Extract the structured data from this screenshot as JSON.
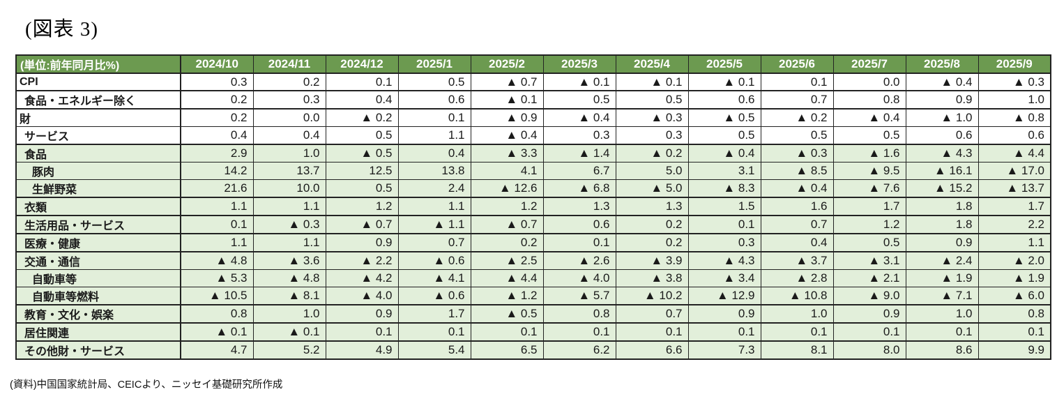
{
  "title": "(図表 3)",
  "footer": "(資料)中国国家統計局、CEICより、ニッセイ基礎研究所作成",
  "negative_marker": "▲",
  "colors": {
    "header_bg": "#6C9A50",
    "header_text": "#ffffff",
    "green_row_bg": "#E2EFDA",
    "white_row_bg": "#ffffff",
    "border": "#222222"
  },
  "chart_data": {
    "type": "table",
    "unit_label": "(単位:前年同月比%)",
    "columns": [
      "2024/10",
      "2024/11",
      "2024/12",
      "2025/1",
      "2025/2",
      "2025/3",
      "2025/4",
      "2025/5",
      "2025/6",
      "2025/7",
      "2025/8",
      "2025/9"
    ],
    "rows": [
      {
        "label": "CPI",
        "indent": 0,
        "shade": "white",
        "sep": "thick",
        "values": [
          0.3,
          0.2,
          0.1,
          0.5,
          -0.7,
          -0.1,
          -0.1,
          -0.1,
          0.1,
          0.0,
          -0.4,
          -0.3
        ]
      },
      {
        "label": "食品・エネルギー除く",
        "indent": 1,
        "shade": "white",
        "sep": "thick",
        "values": [
          0.2,
          0.3,
          0.4,
          0.6,
          -0.1,
          0.5,
          0.5,
          0.6,
          0.7,
          0.8,
          0.9,
          1.0
        ]
      },
      {
        "label": "財",
        "indent": 0,
        "shade": "white",
        "sep": "thin",
        "values": [
          0.2,
          0.0,
          -0.2,
          0.1,
          -0.9,
          -0.4,
          -0.3,
          -0.5,
          -0.2,
          -0.4,
          -1.0,
          -0.8
        ]
      },
      {
        "label": "サービス",
        "indent": 1,
        "shade": "white",
        "sep": "thick",
        "values": [
          0.4,
          0.4,
          0.5,
          1.1,
          -0.4,
          0.3,
          0.3,
          0.5,
          0.5,
          0.5,
          0.6,
          0.6
        ]
      },
      {
        "label": "食品",
        "indent": 1,
        "shade": "green",
        "sep": "thin",
        "values": [
          2.9,
          1.0,
          -0.5,
          0.4,
          -3.3,
          -1.4,
          -0.2,
          -0.4,
          -0.3,
          -1.6,
          -4.3,
          -4.4
        ]
      },
      {
        "label": "豚肉",
        "indent": 2,
        "shade": "green",
        "sep": "thin",
        "values": [
          14.2,
          13.7,
          12.5,
          13.8,
          4.1,
          6.7,
          5.0,
          3.1,
          -8.5,
          -9.5,
          -16.1,
          -17.0
        ]
      },
      {
        "label": "生鮮野菜",
        "indent": 2,
        "shade": "green",
        "sep": "thick",
        "values": [
          21.6,
          10.0,
          0.5,
          2.4,
          -12.6,
          -6.8,
          -5.0,
          -8.3,
          -0.4,
          -7.6,
          -15.2,
          -13.7
        ]
      },
      {
        "label": "衣類",
        "indent": 1,
        "shade": "green",
        "sep": "thick",
        "values": [
          1.1,
          1.1,
          1.2,
          1.1,
          1.2,
          1.3,
          1.3,
          1.5,
          1.6,
          1.7,
          1.8,
          1.7
        ]
      },
      {
        "label": "生活用品・サービス",
        "indent": 1,
        "shade": "green",
        "sep": "thick",
        "values": [
          0.1,
          -0.3,
          -0.7,
          -1.1,
          -0.7,
          0.6,
          0.2,
          0.1,
          0.7,
          1.2,
          1.8,
          2.2
        ]
      },
      {
        "label": "医療・健康",
        "indent": 1,
        "shade": "green",
        "sep": "thick",
        "values": [
          1.1,
          1.1,
          0.9,
          0.7,
          0.2,
          0.1,
          0.2,
          0.3,
          0.4,
          0.5,
          0.9,
          1.1
        ]
      },
      {
        "label": "交通・通信",
        "indent": 1,
        "shade": "green",
        "sep": "thin",
        "values": [
          -4.8,
          -3.6,
          -2.2,
          -0.6,
          -2.5,
          -2.6,
          -3.9,
          -4.3,
          -3.7,
          -3.1,
          -2.4,
          -2.0
        ]
      },
      {
        "label": "自動車等",
        "indent": 2,
        "shade": "green",
        "sep": "thin",
        "values": [
          -5.3,
          -4.8,
          -4.2,
          -4.1,
          -4.4,
          -4.0,
          -3.8,
          -3.4,
          -2.8,
          -2.1,
          -1.9,
          -1.9
        ]
      },
      {
        "label": "自動車等燃料",
        "indent": 2,
        "shade": "green",
        "sep": "thick",
        "values": [
          -10.5,
          -8.1,
          -4.0,
          -0.6,
          -1.2,
          -5.7,
          -10.2,
          -12.9,
          -10.8,
          -9.0,
          -7.1,
          -6.0
        ]
      },
      {
        "label": "教育・文化・娯楽",
        "indent": 1,
        "shade": "green",
        "sep": "thick",
        "values": [
          0.8,
          1.0,
          0.9,
          1.7,
          -0.5,
          0.8,
          0.7,
          0.9,
          1.0,
          0.9,
          1.0,
          0.8
        ]
      },
      {
        "label": "居住関連",
        "indent": 1,
        "shade": "green",
        "sep": "thick",
        "values": [
          -0.1,
          -0.1,
          0.1,
          0.1,
          0.1,
          0.1,
          0.1,
          0.1,
          0.1,
          0.1,
          0.1,
          0.1
        ]
      },
      {
        "label": "その他財・サービス",
        "indent": 1,
        "shade": "green",
        "sep": "thick",
        "values": [
          4.7,
          5.2,
          4.9,
          5.4,
          6.5,
          6.2,
          6.6,
          7.3,
          8.1,
          8.0,
          8.6,
          9.9
        ]
      }
    ]
  }
}
